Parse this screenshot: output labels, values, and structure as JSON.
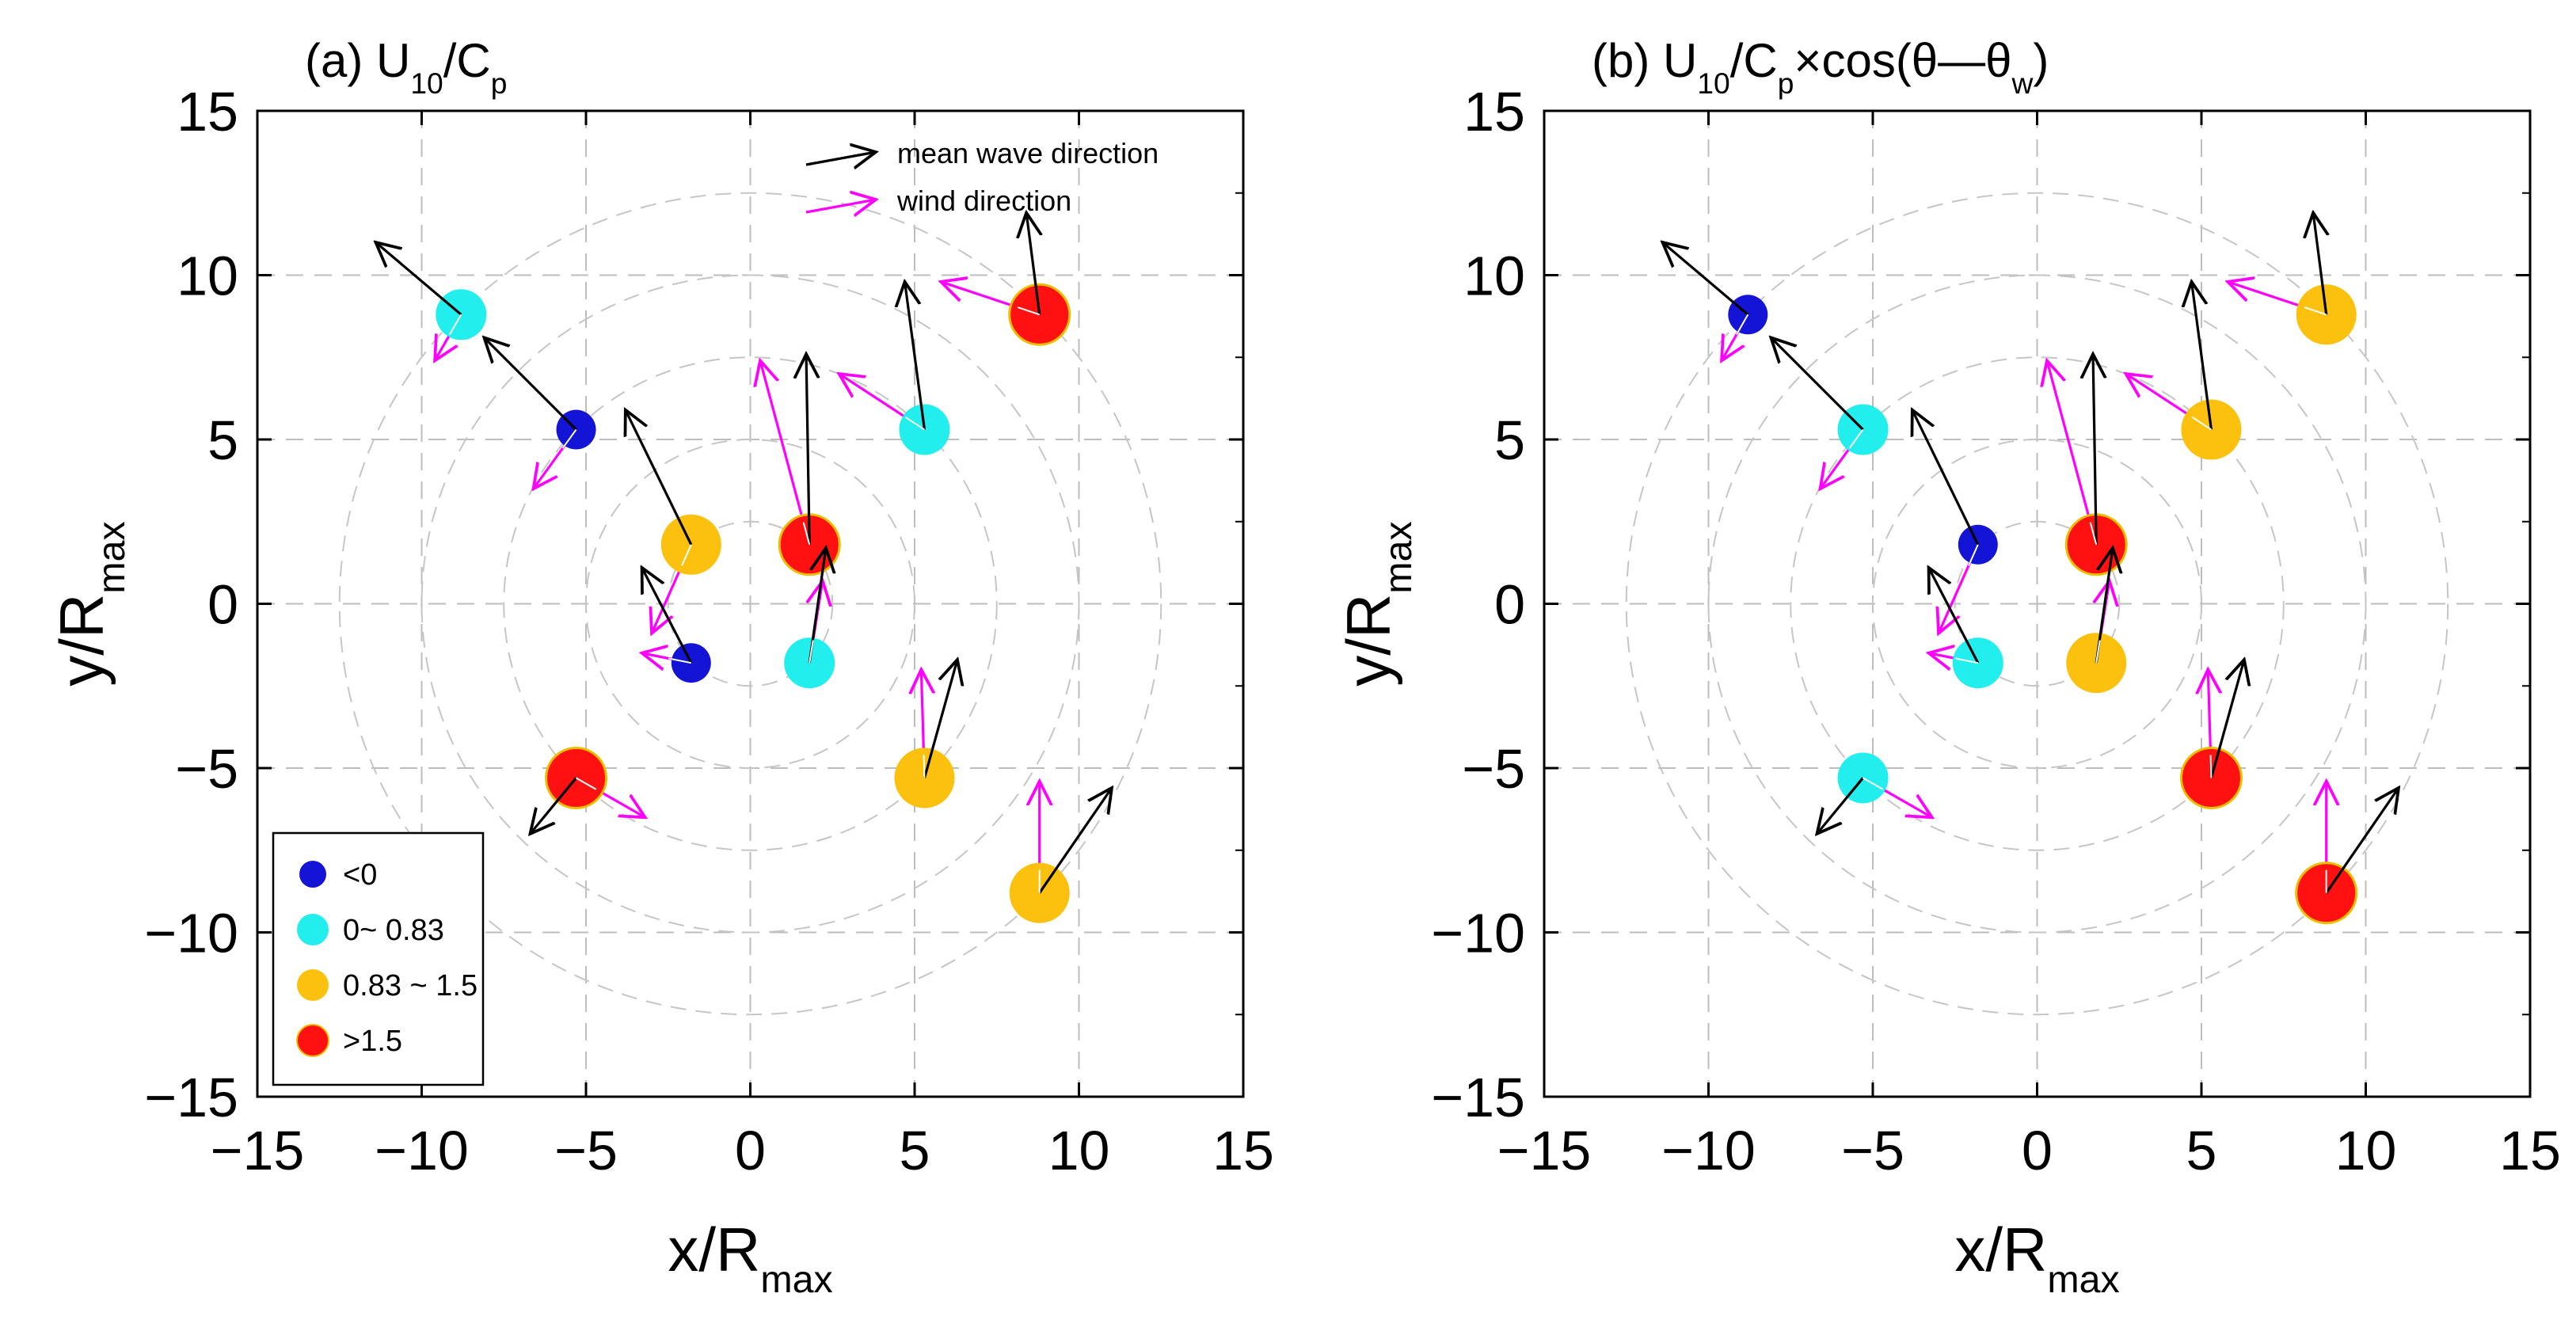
{
  "chart_data": [
    {
      "type": "scatter",
      "panel_label": "(a)",
      "title": "(a) U10/Cp",
      "title_parts": {
        "prefix": "(a) U",
        "sub1": "10",
        "mid1": "/C",
        "sub2": "p",
        "mid2": "",
        "sub3": "",
        "suffix": ""
      },
      "xlabel": "x/Rmax",
      "ylabel": "y/Rmax",
      "xlim": [
        -15,
        15
      ],
      "ylim": [
        -15,
        15
      ],
      "xticks": [
        -15,
        -10,
        -5,
        0,
        5,
        10,
        15
      ],
      "yticks": [
        -15,
        -10,
        -5,
        0,
        5,
        10,
        15
      ],
      "grid": true,
      "range_circles": [
        2.5,
        5,
        7.5,
        10,
        12.5
      ],
      "points": [
        {
          "x": -8.8,
          "y": 8.8,
          "category": "0~ 0.83",
          "wave": [
            -2.6,
            2.2
          ],
          "wind": [
            -0.8,
            -1.4
          ]
        },
        {
          "x": -5.3,
          "y": 5.3,
          "category": "<0",
          "wave": [
            -2.8,
            2.8
          ],
          "wind": [
            -1.3,
            -1.8
          ]
        },
        {
          "x": -1.8,
          "y": 1.8,
          "category": "0.83 ~ 1.5",
          "wave": [
            -2.0,
            4.1
          ],
          "wind": [
            -1.2,
            -2.7
          ]
        },
        {
          "x": 1.8,
          "y": 1.8,
          "category": ">1.5",
          "wave": [
            -0.1,
            5.8
          ],
          "wind": [
            -1.5,
            5.6
          ]
        },
        {
          "x": 5.3,
          "y": 5.3,
          "category": "0~ 0.83",
          "wave": [
            -0.6,
            4.5
          ],
          "wind": [
            -2.6,
            1.7
          ]
        },
        {
          "x": 8.8,
          "y": 8.8,
          "category": ">1.5",
          "wave": [
            -0.4,
            3.1
          ],
          "wind": [
            -3.0,
            1.0
          ]
        },
        {
          "x": -5.3,
          "y": -5.3,
          "category": ">1.5",
          "wave": [
            -1.4,
            -1.7
          ],
          "wind": [
            2.1,
            -1.2
          ]
        },
        {
          "x": -1.8,
          "y": -1.8,
          "category": "<0",
          "wave": [
            -1.5,
            2.9
          ],
          "wind": [
            -1.5,
            0.3
          ]
        },
        {
          "x": 1.8,
          "y": -1.8,
          "category": "0~ 0.83",
          "wave": [
            0.5,
            3.5
          ],
          "wind": [
            0.4,
            2.5
          ]
        },
        {
          "x": 5.3,
          "y": -5.3,
          "category": "0.83 ~ 1.5",
          "wave": [
            1.0,
            3.6
          ],
          "wind": [
            -0.1,
            3.3
          ]
        },
        {
          "x": 8.8,
          "y": -8.8,
          "category": "0.83 ~ 1.5",
          "wave": [
            2.2,
            3.2
          ],
          "wind": [
            0.0,
            3.4
          ]
        }
      ]
    },
    {
      "type": "scatter",
      "panel_label": "(b)",
      "title": "(b) U10/Cp×cos(θ—θw)",
      "title_parts": {
        "prefix": "(b) U",
        "sub1": "10",
        "mid1": "/C",
        "sub2": "p",
        "mid2": "×cos(θ—θ",
        "sub3": "w",
        "suffix": ")"
      },
      "xlabel": "x/Rmax",
      "ylabel": "y/Rmax",
      "xlim": [
        -15,
        15
      ],
      "ylim": [
        -15,
        15
      ],
      "xticks": [
        -15,
        -10,
        -5,
        0,
        5,
        10,
        15
      ],
      "yticks": [
        -15,
        -10,
        -5,
        0,
        5,
        10,
        15
      ],
      "grid": true,
      "range_circles": [
        2.5,
        5,
        7.5,
        10,
        12.5
      ],
      "points": [
        {
          "x": -8.8,
          "y": 8.8,
          "category": "<0",
          "wave": [
            -2.6,
            2.2
          ],
          "wind": [
            -0.8,
            -1.4
          ]
        },
        {
          "x": -5.3,
          "y": 5.3,
          "category": "0~ 0.83",
          "wave": [
            -2.8,
            2.8
          ],
          "wind": [
            -1.3,
            -1.8
          ]
        },
        {
          "x": -1.8,
          "y": 1.8,
          "category": "<0",
          "wave": [
            -2.0,
            4.1
          ],
          "wind": [
            -1.2,
            -2.7
          ]
        },
        {
          "x": 1.8,
          "y": 1.8,
          "category": ">1.5",
          "wave": [
            -0.1,
            5.8
          ],
          "wind": [
            -1.5,
            5.6
          ]
        },
        {
          "x": 5.3,
          "y": 5.3,
          "category": "0.83 ~ 1.5",
          "wave": [
            -0.6,
            4.5
          ],
          "wind": [
            -2.6,
            1.7
          ]
        },
        {
          "x": 8.8,
          "y": 8.8,
          "category": "0.83 ~ 1.5",
          "wave": [
            -0.4,
            3.1
          ],
          "wind": [
            -3.0,
            1.0
          ]
        },
        {
          "x": -5.3,
          "y": -5.3,
          "category": "0~ 0.83",
          "wave": [
            -1.4,
            -1.7
          ],
          "wind": [
            2.1,
            -1.2
          ]
        },
        {
          "x": -1.8,
          "y": -1.8,
          "category": "0~ 0.83",
          "wave": [
            -1.5,
            2.9
          ],
          "wind": [
            -1.5,
            0.3
          ]
        },
        {
          "x": 1.8,
          "y": -1.8,
          "category": "0.83 ~ 1.5",
          "wave": [
            0.5,
            3.5
          ],
          "wind": [
            0.4,
            2.5
          ]
        },
        {
          "x": 5.3,
          "y": -5.3,
          "category": ">1.5",
          "wave": [
            1.0,
            3.6
          ],
          "wind": [
            -0.1,
            3.3
          ]
        },
        {
          "x": 8.8,
          "y": -8.8,
          "category": ">1.5",
          "wave": [
            2.2,
            3.2
          ],
          "wind": [
            0.0,
            3.4
          ]
        }
      ]
    }
  ],
  "axis_label_parts": {
    "x": {
      "main": "x/R",
      "sub": "max"
    },
    "y": {
      "main": "y/R",
      "sub": "max"
    }
  },
  "legend": {
    "placement": "bottom-left of panel (a)",
    "entries": [
      {
        "label": "<0",
        "category": "<0"
      },
      {
        "label": "0~ 0.83",
        "category": "0~ 0.83"
      },
      {
        "label": "0.83 ~ 1.5",
        "category": "0.83 ~ 1.5"
      },
      {
        "label": ">1.5",
        "category": ">1.5"
      }
    ]
  },
  "arrow_key": {
    "placement": "top-right of panel (a)",
    "entries": [
      {
        "label": "mean wave direction",
        "color": "#000000"
      },
      {
        "label": "wind direction",
        "color": "#ff00ff"
      }
    ]
  },
  "category_styles": {
    "<0": {
      "color": "#1414d6",
      "size": "small"
    },
    "0~ 0.83": {
      "color": "#22eeee",
      "size": "medium"
    },
    "0.83 ~ 1.5": {
      "color": "#fcc10e",
      "size": "large"
    },
    ">1.5": {
      "color": "#ff1111",
      "size": "large",
      "edge": "#e8c000"
    }
  },
  "colors": {
    "wave_arrow": "#000000",
    "wind_arrow": "#ff00ff",
    "grid": "#bdbdbd",
    "range_circle": "#c6c6c6",
    "axes": "#000000"
  }
}
